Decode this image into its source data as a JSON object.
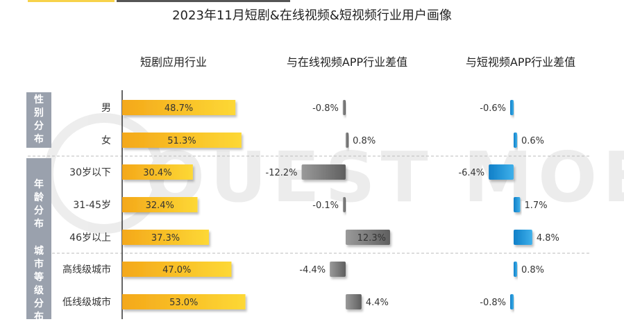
{
  "title": "2023年11月短剧&在线视频&短视频行业用户画像",
  "headers": {
    "short_drama": "短剧应用行业",
    "online_video_diff": "与在线视频APP行业差值",
    "short_video_diff": "与短视频APP行业差值"
  },
  "watermark": "QUEST MOBILE",
  "colors": {
    "short_drama": "#f7b81c",
    "online_video_diff": "#7f7f7f",
    "short_video_diff": "#1a93d6",
    "group_tab": "#9aa1ad"
  },
  "chart_data": {
    "type": "bar",
    "title": "2023年11月短剧&在线视频&短视频行业用户画像",
    "unit": "%",
    "groups": [
      {
        "name": "性别分布",
        "rows": [
          "男",
          "女"
        ]
      },
      {
        "name": "年龄分布",
        "rows": [
          "30岁以下",
          "31-45岁",
          "46岁以上"
        ]
      },
      {
        "name": "城市等级分布",
        "rows": [
          "高线级城市",
          "低线级城市"
        ]
      }
    ],
    "categories": [
      "男",
      "女",
      "30岁以下",
      "31-45岁",
      "46岁以上",
      "高线级城市",
      "低线级城市"
    ],
    "series": [
      {
        "name": "短剧应用行业",
        "values": [
          48.7,
          51.3,
          30.4,
          32.4,
          37.3,
          47.0,
          53.0
        ]
      },
      {
        "name": "与在线视频APP行业差值",
        "values": [
          -0.8,
          0.8,
          -12.2,
          -0.1,
          12.3,
          -4.4,
          4.4
        ]
      },
      {
        "name": "与短视频APP行业差值",
        "values": [
          -0.6,
          0.6,
          -6.4,
          1.7,
          4.8,
          0.8,
          -0.8
        ]
      }
    ],
    "labels": {
      "short_drama": [
        "48.7%",
        "51.3%",
        "30.4%",
        "32.4%",
        "37.3%",
        "47.0%",
        "53.0%"
      ],
      "online_video_diff": [
        "-0.8%",
        "0.8%",
        "-12.2%",
        "-0.1%",
        "12.3%",
        "-4.4%",
        "4.4%"
      ],
      "short_video_diff": [
        "-0.6%",
        "0.6%",
        "-6.4%",
        "1.7%",
        "4.8%",
        "0.8%",
        "-0.8%"
      ]
    },
    "legend": "none",
    "grid": false
  }
}
